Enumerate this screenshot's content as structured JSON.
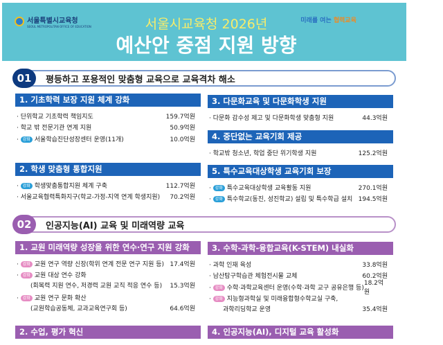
{
  "header": {
    "org": "서울특별시교육청",
    "org_en": "SEOUL METROPOLITAN OFFICE OF EDUCATION",
    "slogan_a": "미래를 여는 ",
    "slogan_b": "협력교육",
    "title_line1": "서울시교육청 2026년",
    "title_line2": "예산안 중점 지원 방향"
  },
  "badge": "강화",
  "colors": {
    "band": "#5ec3d2",
    "blue": "#1d64b8",
    "navy": "#0d3a80",
    "purple": "#9a5eb0"
  },
  "sections": [
    {
      "num": "01",
      "title": "평등하고 포용적인 맞춤형 교육으로 교육격차 해소",
      "boxes": [
        {
          "title": "1. 기초학력 보장 지원 체계 강화",
          "items": [
            {
              "badge": false,
              "label": "단위학교 기초학력 책임지도",
              "amount": "159.7억원"
            },
            {
              "badge": false,
              "label": "학교 밖 전문기관 연계 지원",
              "amount": "50.9억원"
            },
            {
              "badge": true,
              "label": "서울학습진단성장센터 운영(11개)",
              "amount": "10.0억원"
            }
          ]
        },
        {
          "title": "2. 학생 맞춤형 통합지원",
          "items": [
            {
              "badge": true,
              "label": "학생맞춤통합지원 체계 구축",
              "amount": "112.7억원"
            },
            {
              "badge": false,
              "label": "서울교육협력특화지구(학교-가정-지역 연계 학생지원)",
              "amount": "70.2억원"
            }
          ]
        },
        {
          "title": "3. 다문화교육 및 다문화학생 지원",
          "items": [
            {
              "badge": false,
              "label": "다문화 감수성 제고 및 다문화학생 맞춤형 지원",
              "amount": "44.3억원"
            }
          ]
        },
        {
          "title": "4. 중단없는 교육기회 제공",
          "items": [
            {
              "badge": false,
              "label": "학교밖 청소년, 학업 중단 위기학생 지원",
              "amount": "125.2억원"
            }
          ]
        },
        {
          "title": "5. 특수교육대상학생 교육기회 보장",
          "items": [
            {
              "badge": true,
              "label": "특수교육대상학생 교육활동 지원",
              "amount": "270.1억원"
            },
            {
              "badge": true,
              "label": "특수학교(동진, 성진학교) 설립 및 특수학급 설치",
              "amount": "194.5억원"
            }
          ]
        }
      ]
    },
    {
      "num": "02",
      "title": "인공지능(AI) 교육 및 미래역량 교육",
      "boxes": [
        {
          "title": "1. 교원 미래역량 성장을 위한 연수·연구 지원 강화",
          "items": [
            {
              "badge": true,
              "label": "교원 연구 역량 신장(학위 연계 전문 연구 지원 등)",
              "amount": "17.4억원"
            },
            {
              "badge": true,
              "label": "교원 대상 연수 강화",
              "amount": ""
            },
            {
              "sub": true,
              "label": "(회복력 지원 연수, 저경력 교원 교직 적응 연수 등)",
              "amount": "15.3억원"
            },
            {
              "badge": true,
              "label": "교원 연구 문화 확산",
              "amount": ""
            },
            {
              "sub": true,
              "label": "(교원학습공동체, 교과교육연구회 등)",
              "amount": "64.6억원"
            }
          ]
        },
        {
          "title": "2. 수업, 평가 혁신",
          "items": []
        },
        {
          "title": "3. 수학-과학-융합교육(K-STEM) 내실화",
          "items": [
            {
              "badge": false,
              "label": "과학 인재 육성",
              "amount": "33.8억원"
            },
            {
              "badge": false,
              "label": "남산탐구학습관 체험전시물 교체",
              "amount": "60.2억원"
            },
            {
              "badge": true,
              "label": "수학·과학교육센터 운영(수학·과학 교구 공유은행 등)",
              "amount": "18.2억원"
            },
            {
              "badge": true,
              "label": "지능형과학실 및 미래융합형수학교실 구축,",
              "amount": ""
            },
            {
              "sub": true,
              "label": "과학리딩학교 운영",
              "amount": "35.4억원"
            }
          ]
        },
        {
          "title": "4. 인공지능(AI), 디지털 교육 활성화",
          "items": []
        }
      ]
    }
  ]
}
